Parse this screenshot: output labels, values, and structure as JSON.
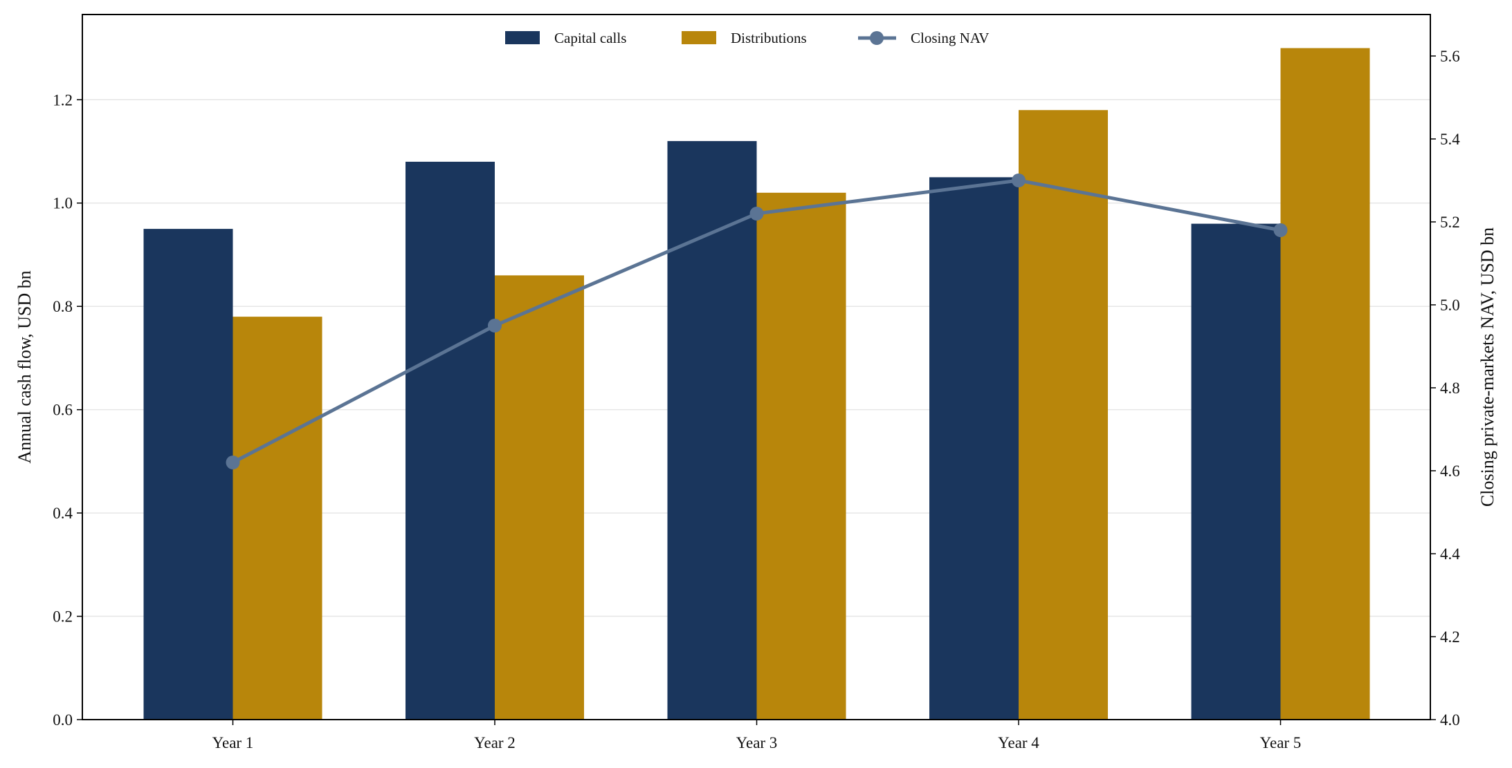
{
  "chart_data": {
    "type": "bar",
    "categories": [
      "Year 1",
      "Year 2",
      "Year 3",
      "Year 4",
      "Year 5"
    ],
    "series": [
      {
        "name": "Capital calls",
        "type": "bar",
        "axis": "left",
        "color": "#1a365d",
        "values": [
          0.95,
          1.08,
          1.12,
          1.05,
          0.96
        ]
      },
      {
        "name": "Distributions",
        "type": "bar",
        "axis": "left",
        "color": "#b8860b",
        "values": [
          0.78,
          0.86,
          1.02,
          1.18,
          1.3
        ]
      },
      {
        "name": "Closing NAV",
        "type": "line",
        "axis": "right",
        "color": "#5b7494",
        "values": [
          4.62,
          4.95,
          5.22,
          5.3,
          5.18
        ]
      }
    ],
    "ylabel": "Annual cash flow, USD bn",
    "y2label": "Closing private-markets NAV, USD bn",
    "ylim": [
      0,
      1.365
    ],
    "y2lim": [
      4.0,
      5.7
    ],
    "yticks": [
      "0.0",
      "0.2",
      "0.4",
      "0.6",
      "0.8",
      "1.0",
      "1.2"
    ],
    "y2ticks": [
      "4.0",
      "4.2",
      "4.4",
      "4.6",
      "4.8",
      "5.0",
      "5.2",
      "5.4",
      "5.6"
    ],
    "grid": true,
    "legend_position": "top-center"
  }
}
